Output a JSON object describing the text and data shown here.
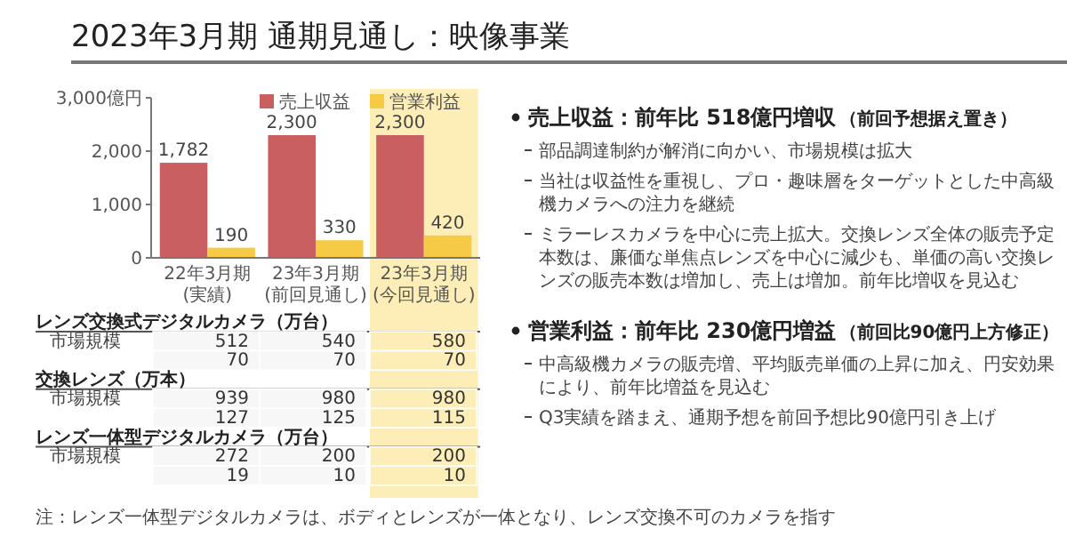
{
  "chart_data": [
    {
      "type": "bar",
      "title": "2023年3月期 通期見通し：映像事業",
      "categories": [
        "22年3月期\n(実績)",
        "23年3月期\n(前回見通し)",
        "23年3月期\n(今回見通し)"
      ],
      "series": [
        {
          "name": "売上収益",
          "color": "#c95f60",
          "values": [
            1782,
            2300,
            2300
          ],
          "value_labels": [
            "1,782",
            "2,300",
            "2,300"
          ]
        },
        {
          "name": "営業利益",
          "color": "#f7ca45",
          "values": [
            190,
            330,
            420
          ]
        }
      ],
      "ylim": [
        0,
        3000
      ],
      "yticks": [
        0,
        {
          "value": 1000,
          "label": "1,000"
        },
        {
          "value": 2000,
          "label": "2,000"
        },
        {
          "value": 3000,
          "label": "3,000億円"
        }
      ],
      "data_labels": true,
      "legend": "top right",
      "annotations": [
        "注：レンズ一体型デジタルカメラは、ボディとレンズが一体となり、レンズ交換不可のカメラを指す"
      ],
      "bands": [
        {
          "axis": "x",
          "from": "23年3月期\n(今回見通し)",
          "to": "23年3月期\n(今回見通し)",
          "color": "#fdeeb8"
        }
      ]
    },
    {
      "type": "heatmap",
      "categories": [
        null,
        null,
        null
      ],
      "y_categories": [
        "レンズ交換式デジタルカメラ（万台）",
        "市場規模",
        null,
        "交換レンズ（万本）",
        "市場規模",
        null,
        "レンズ一体型デジタルカメラ（万台）",
        "市場規模",
        null
      ],
      "cells": [
        [
          null,
          null,
          null
        ],
        [
          512,
          540,
          580
        ],
        [
          70,
          70,
          70
        ],
        [
          null,
          null,
          null
        ],
        [
          939,
          980,
          980
        ],
        [
          127,
          125,
          115
        ],
        [
          null,
          null,
          null
        ],
        [
          272,
          200,
          200
        ],
        [
          19,
          10,
          10
        ]
      ],
      "data_labels": true
    },
    {
      "type": "other",
      "title": "売上収益：前年比 518億円増収",
      "subtitle": "（前回予想据え置き）",
      "annotations": [
        "部品調達制約が解消に向かい、市場規模は拡大",
        "当社は収益性を重視し、プロ・趣味層をターゲットとした中高級機カメラへの注力を継続",
        "ミラーレスカメラを中心に売上拡大。交換レンズ全体の販売予定本数は、廉価な単焦点レンズを中心に減少も、単価の高い交換レンズの販売本数は増加し、売上は増加。前年比増収を見込む"
      ]
    },
    {
      "type": "other",
      "title": "営業利益：前年比 230億円増益",
      "subtitle": "（前回比90億円上方修正）",
      "annotations": [
        "中高級機カメラの販売増、平均販売単価の上昇に加え、円安効果により、前年比増益を見込む",
        "Q3実績を踏まえ、通期予想を前回予想比90億円引き上げ"
      ]
    }
  ]
}
